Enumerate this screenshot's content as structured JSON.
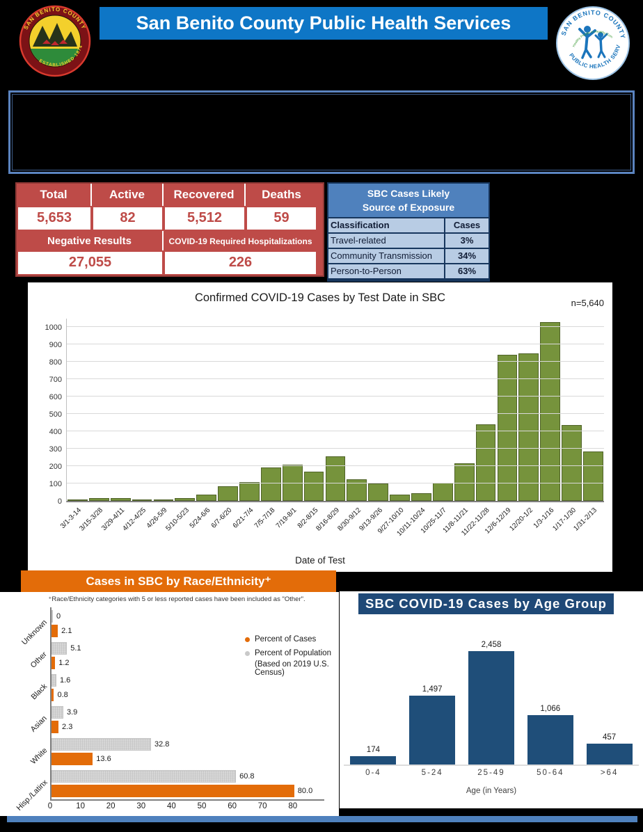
{
  "header": {
    "title": "San Benito County Public Health Services",
    "banner_color": "#0E76C6",
    "seal": {
      "top_text": "SAN BENITO COUNTY",
      "bottom_text": "ESTABLISHED 1874"
    },
    "phs_logo": {
      "top_text": "SAN BENITO COUNTY",
      "bottom_text": "PUBLIC HEALTH SERVICES",
      "middle_text": "Healthy People in Healthy Communities"
    }
  },
  "stats_table": {
    "accent_color": "#BE4B48",
    "headers": [
      "Total",
      "Active",
      "Recovered",
      "Deaths"
    ],
    "values": [
      "5,653",
      "82",
      "5,512",
      "59"
    ],
    "secondary_headers": [
      "Negative Results",
      "COVID-19 Required Hospitalizations"
    ],
    "secondary_values": [
      "27,055",
      "226"
    ]
  },
  "exposure_table": {
    "title_lines": [
      "SBC Cases Likely",
      "Source of Exposure"
    ],
    "header_color": "#4F81BD",
    "row_color": "#B8CCE4",
    "border_color": "#17365D",
    "columns": [
      "Classification",
      "Cases"
    ],
    "rows": [
      {
        "label": "Travel-related",
        "value": "3%"
      },
      {
        "label": "Community Transmission",
        "value": "34%"
      },
      {
        "label": "Person-to-Person",
        "value": "63%"
      }
    ]
  },
  "chart_data": [
    {
      "id": "test_date",
      "type": "bar",
      "title": "Confirmed COVID-19 Cases by Test Date in SBC",
      "annotation": "n=5,640",
      "xlabel": "Date of Test",
      "ylabel": "",
      "ylim": [
        0,
        1050
      ],
      "ytick_step": 100,
      "ytick_max": 1000,
      "grid": true,
      "bar_color": "#76933C",
      "bar_border": "#4F6228",
      "categories": [
        "3/1-3-14",
        "3/15-3/28",
        "3/29-4/11",
        "4/12-4/25",
        "4/26-5/9",
        "5/10-5/23",
        "5/24-6/6",
        "6/7-6/20",
        "6/21-7/4",
        "7/5-7/18",
        "7/19-8/1",
        "8/2-8/15",
        "8/16-8/29",
        "8/30-9/12",
        "9/13-9/26",
        "9/27-10/10",
        "10/11-10/24",
        "10/25-11/7",
        "11/8-11/21",
        "11/22-11/28",
        "12/6-12/19",
        "12/20-1/2",
        "1/3-1/16",
        "1/17-1/30",
        "1/31-2/13"
      ],
      "values": [
        3,
        18,
        17,
        8,
        8,
        18,
        35,
        85,
        110,
        192,
        208,
        170,
        258,
        125,
        100,
        38,
        45,
        105,
        218,
        440,
        843,
        848,
        1030,
        435,
        285
      ]
    },
    {
      "id": "race_ethnicity",
      "type": "bar-horizontal-grouped",
      "title": "Cases in SBC by Race/Ethnicity⁺",
      "footnote": "⁺Race/Ethnicity categories with 5 or less reported cases have been included as \"Other\".",
      "header_color": "#E36C09",
      "categories": [
        "Unknown",
        "Other",
        "Black",
        "Asian",
        "White",
        "Hisp./Latinx"
      ],
      "series": [
        {
          "name": "Percent of Cases",
          "color": "#E36C09",
          "values": [
            2.1,
            1.2,
            0.8,
            2.3,
            13.6,
            80.0
          ],
          "labels": [
            "2.1",
            "1.2",
            "0.8",
            "2.3",
            "13.6",
            "80.0"
          ]
        },
        {
          "name": "Percent of Population (Based on 2019 U.S. Census)",
          "color": "#D9D9D9",
          "values": [
            0,
            5.1,
            1.6,
            3.9,
            32.8,
            60.8
          ],
          "labels": [
            "0",
            "5.1",
            "1.6",
            "3.9",
            "32.8",
            "60.8"
          ]
        }
      ],
      "legend": [
        "Percent of Cases",
        "Percent of Population",
        "(Based on 2019 U.S. Census)"
      ],
      "xlim": [
        0,
        80
      ],
      "xticks": [
        0,
        10,
        20,
        30,
        40,
        50,
        60,
        70,
        80
      ],
      "legend_position": "right"
    },
    {
      "id": "age_group",
      "type": "bar",
      "title": "SBC COVID-19 Cases by Age Group",
      "xlabel": "Age (in Years)",
      "banner_color": "#1F4977",
      "bar_color": "#1F4E79",
      "categories": [
        "0-4",
        "5-24",
        "25-49",
        "50-64",
        ">64"
      ],
      "values": [
        174,
        1497,
        2458,
        1066,
        457
      ],
      "value_labels": [
        "174",
        "1,497",
        "2,458",
        "1,066",
        "457"
      ]
    }
  ],
  "footer": {
    "bar_color": "#4F81BD"
  }
}
